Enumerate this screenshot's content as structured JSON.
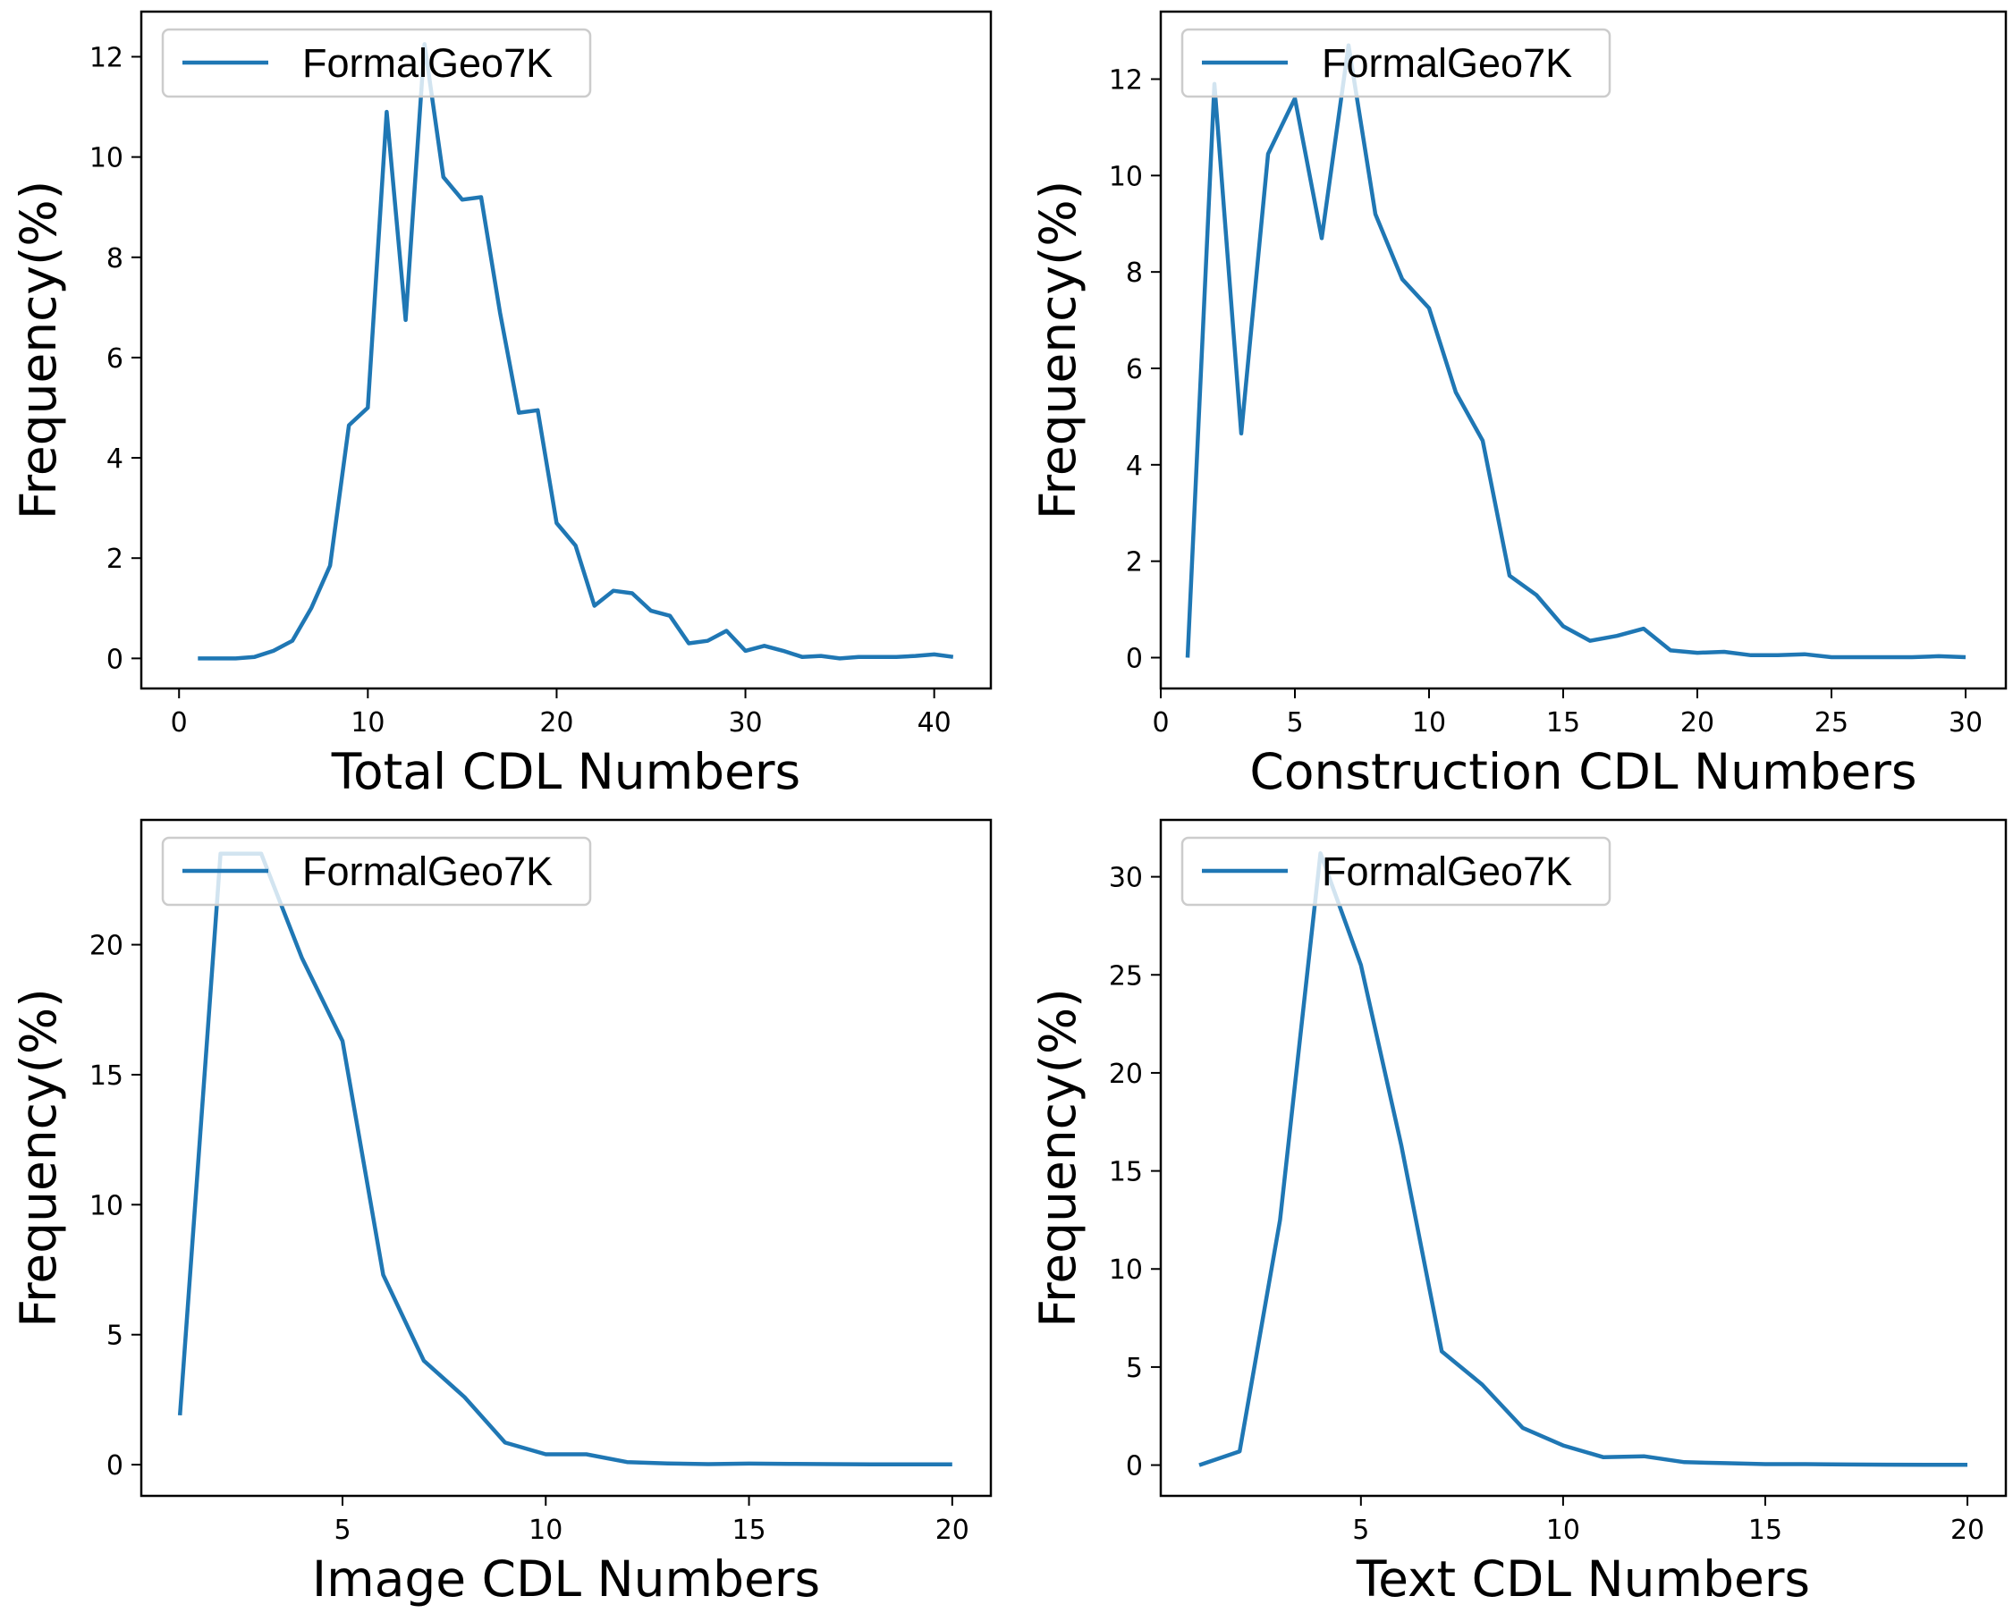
{
  "chart_data": [
    {
      "type": "line",
      "title": "",
      "xlabel": "Total CDL Numbers",
      "ylabel": "Frequency(%)",
      "xlim": [
        -2,
        43
      ],
      "ylim": [
        -0.6,
        12.9
      ],
      "xticks": [
        0,
        10,
        20,
        30,
        40
      ],
      "yticks": [
        0,
        2,
        4,
        6,
        8,
        10,
        12
      ],
      "legend": "top-left",
      "grid": false,
      "color": "#1f77b4",
      "series": [
        {
          "name": "FormalGeo7K",
          "x": [
            1,
            2,
            3,
            4,
            5,
            6,
            7,
            8,
            9,
            10,
            11,
            12,
            13,
            14,
            15,
            16,
            17,
            18,
            19,
            20,
            21,
            22,
            23,
            24,
            25,
            26,
            27,
            28,
            29,
            30,
            31,
            32,
            33,
            34,
            35,
            36,
            37,
            38,
            39,
            40,
            41
          ],
          "y": [
            0,
            0,
            0,
            0.03,
            0.15,
            0.35,
            1,
            1.85,
            4.65,
            5,
            10.9,
            6.75,
            12.25,
            9.6,
            9.15,
            9.2,
            6.9,
            4.9,
            4.95,
            2.7,
            2.25,
            1.05,
            1.35,
            1.3,
            0.95,
            0.85,
            0.3,
            0.35,
            0.55,
            0.15,
            0.25,
            0.15,
            0.03,
            0.05,
            0,
            0.03,
            0.03,
            0.03,
            0.05,
            0.08,
            0.03
          ]
        }
      ]
    },
    {
      "type": "line",
      "title": "",
      "xlabel": "Construction CDL Numbers",
      "ylabel": "Frequency(%)",
      "xlim": [
        0,
        31.5
      ],
      "ylim": [
        -0.64,
        13.4
      ],
      "xticks": [
        0,
        5,
        10,
        15,
        20,
        25,
        30
      ],
      "yticks": [
        0,
        2,
        4,
        6,
        8,
        10,
        12
      ],
      "legend": "top-left",
      "grid": false,
      "color": "#1f77b4",
      "series": [
        {
          "name": "FormalGeo7K",
          "x": [
            1,
            2,
            3,
            4,
            5,
            6,
            7,
            8,
            9,
            10,
            11,
            12,
            13,
            14,
            15,
            16,
            17,
            18,
            19,
            20,
            21,
            22,
            23,
            24,
            25,
            26,
            27,
            28,
            29,
            30
          ],
          "y": [
            0,
            11.9,
            4.65,
            10.45,
            11.6,
            8.7,
            12.7,
            9.2,
            7.85,
            7.25,
            5.5,
            4.5,
            1.7,
            1.3,
            0.65,
            0.35,
            0.45,
            0.6,
            0.15,
            0.1,
            0.12,
            0.05,
            0.05,
            0.07,
            0.01,
            0.01,
            0.01,
            0.01,
            0.03,
            0.01
          ]
        }
      ]
    },
    {
      "type": "line",
      "title": "",
      "xlabel": "Image CDL Numbers",
      "ylabel": "Frequency(%)",
      "xlim": [
        0.05,
        20.95
      ],
      "ylim": [
        -1.2,
        24.8
      ],
      "xticks": [
        5,
        10,
        15,
        20
      ],
      "yticks": [
        0,
        5,
        10,
        15,
        20
      ],
      "legend": "top-left",
      "grid": false,
      "color": "#1f77b4",
      "series": [
        {
          "name": "FormalGeo7K",
          "x": [
            1,
            2,
            3,
            4,
            5,
            6,
            7,
            8,
            9,
            10,
            11,
            12,
            13,
            14,
            15,
            16,
            17,
            18,
            19,
            20
          ],
          "y": [
            1.9,
            23.5,
            23.5,
            19.5,
            16.3,
            7.3,
            4,
            2.6,
            0.85,
            0.4,
            0.4,
            0.1,
            0.05,
            0.02,
            0.04,
            0.03,
            0.02,
            0.01,
            0.01,
            0.01
          ]
        }
      ]
    },
    {
      "type": "line",
      "title": "",
      "xlabel": "Text CDL Numbers",
      "ylabel": "Frequency(%)",
      "xlim": [
        0.05,
        20.95
      ],
      "ylim": [
        -1.57,
        32.9
      ],
      "xticks": [
        5,
        10,
        15,
        20
      ],
      "yticks": [
        0,
        5,
        10,
        15,
        20,
        25,
        30
      ],
      "legend": "top-left",
      "grid": false,
      "color": "#1f77b4",
      "series": [
        {
          "name": "FormalGeo7K",
          "x": [
            1,
            2,
            3,
            4,
            5,
            6,
            7,
            8,
            9,
            10,
            11,
            12,
            13,
            14,
            15,
            16,
            17,
            18,
            19,
            20
          ],
          "y": [
            0,
            0.7,
            12.5,
            31.2,
            25.5,
            16.3,
            5.8,
            4.1,
            1.9,
            1.0,
            0.4,
            0.45,
            0.15,
            0.1,
            0.05,
            0.05,
            0.03,
            0.02,
            0.01,
            0.01
          ]
        }
      ]
    }
  ]
}
